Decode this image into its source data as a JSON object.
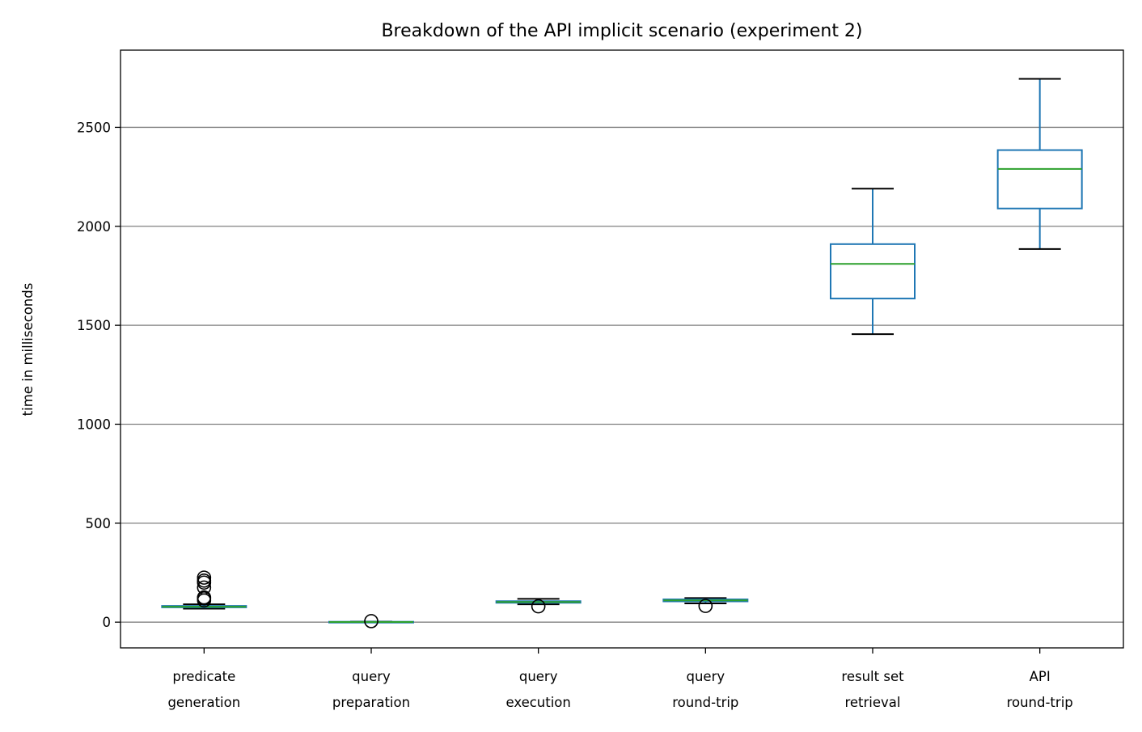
{
  "chart_data": {
    "type": "box",
    "title": "Breakdown of the API implicit scenario (experiment 2)",
    "xlabel": "",
    "ylabel": "time in milliseconds",
    "ylim": [
      -130,
      2890
    ],
    "yticks": [
      0,
      500,
      1000,
      1500,
      2000,
      2500
    ],
    "grid": "horizontal",
    "box_color": "#1f77b4",
    "median_color": "#2ca02c",
    "whisker_cap_color": "#000000",
    "categories": [
      [
        "predicate",
        "generation"
      ],
      [
        "query",
        "preparation"
      ],
      [
        "query",
        "execution"
      ],
      [
        "query",
        "round-trip"
      ],
      [
        "result set",
        "retrieval"
      ],
      [
        "API",
        "round-trip"
      ]
    ],
    "boxes": [
      {
        "whisker_low": 68,
        "q1": 75,
        "median": 78,
        "q3": 82,
        "whisker_high": 90,
        "outliers": [
          110,
          120,
          125,
          175,
          200,
          210,
          225
        ]
      },
      {
        "whisker_low": 0,
        "q1": 0,
        "median": 1,
        "q3": 2,
        "whisker_high": 3,
        "outliers": [
          5
        ]
      },
      {
        "whisker_low": 90,
        "q1": 98,
        "median": 102,
        "q3": 106,
        "whisker_high": 118,
        "outliers": [
          80
        ]
      },
      {
        "whisker_low": 95,
        "q1": 105,
        "median": 110,
        "q3": 115,
        "whisker_high": 122,
        "outliers": [
          82
        ]
      },
      {
        "whisker_low": 1455,
        "q1": 1635,
        "median": 1810,
        "q3": 1910,
        "whisker_high": 2190,
        "outliers": []
      },
      {
        "whisker_low": 1885,
        "q1": 2090,
        "median": 2290,
        "q3": 2385,
        "whisker_high": 2745,
        "outliers": []
      }
    ]
  }
}
